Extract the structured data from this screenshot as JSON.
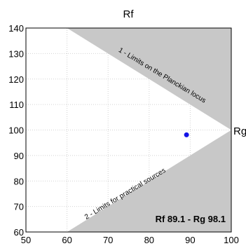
{
  "chart_data": {
    "type": "scatter",
    "title": "",
    "xlabel": "Rf",
    "ylabel": "Rg",
    "xlim": [
      50,
      100
    ],
    "ylim": [
      60,
      140
    ],
    "x_ticks": [
      "50",
      "60",
      "70",
      "80",
      "90",
      "100"
    ],
    "y_ticks": [
      "60",
      "70",
      "80",
      "90",
      "100",
      "110",
      "120",
      "130",
      "140"
    ],
    "grid": true,
    "annotations": {
      "planckian": "1 - Limits on the Planckian locus",
      "practical": "2 - Limits for practical sources"
    },
    "readout": "Rf 89.1 - Rg 98.1",
    "points": [
      {
        "x": 89.1,
        "y": 98.1
      }
    ],
    "regions": {
      "outer_apex": [
        100,
        100
      ],
      "practical_corners": [
        [
          50,
          140
        ],
        [
          50,
          60
        ]
      ],
      "planckian_corners": [
        [
          60,
          140
        ],
        [
          60,
          60
        ]
      ]
    },
    "colors": {
      "outer": "#c8c8c8",
      "middle": "#e3e3e3",
      "inner": "#ffffff",
      "grid": "#d2d2d2",
      "point": "#1414e6",
      "frame": "#000000"
    }
  }
}
